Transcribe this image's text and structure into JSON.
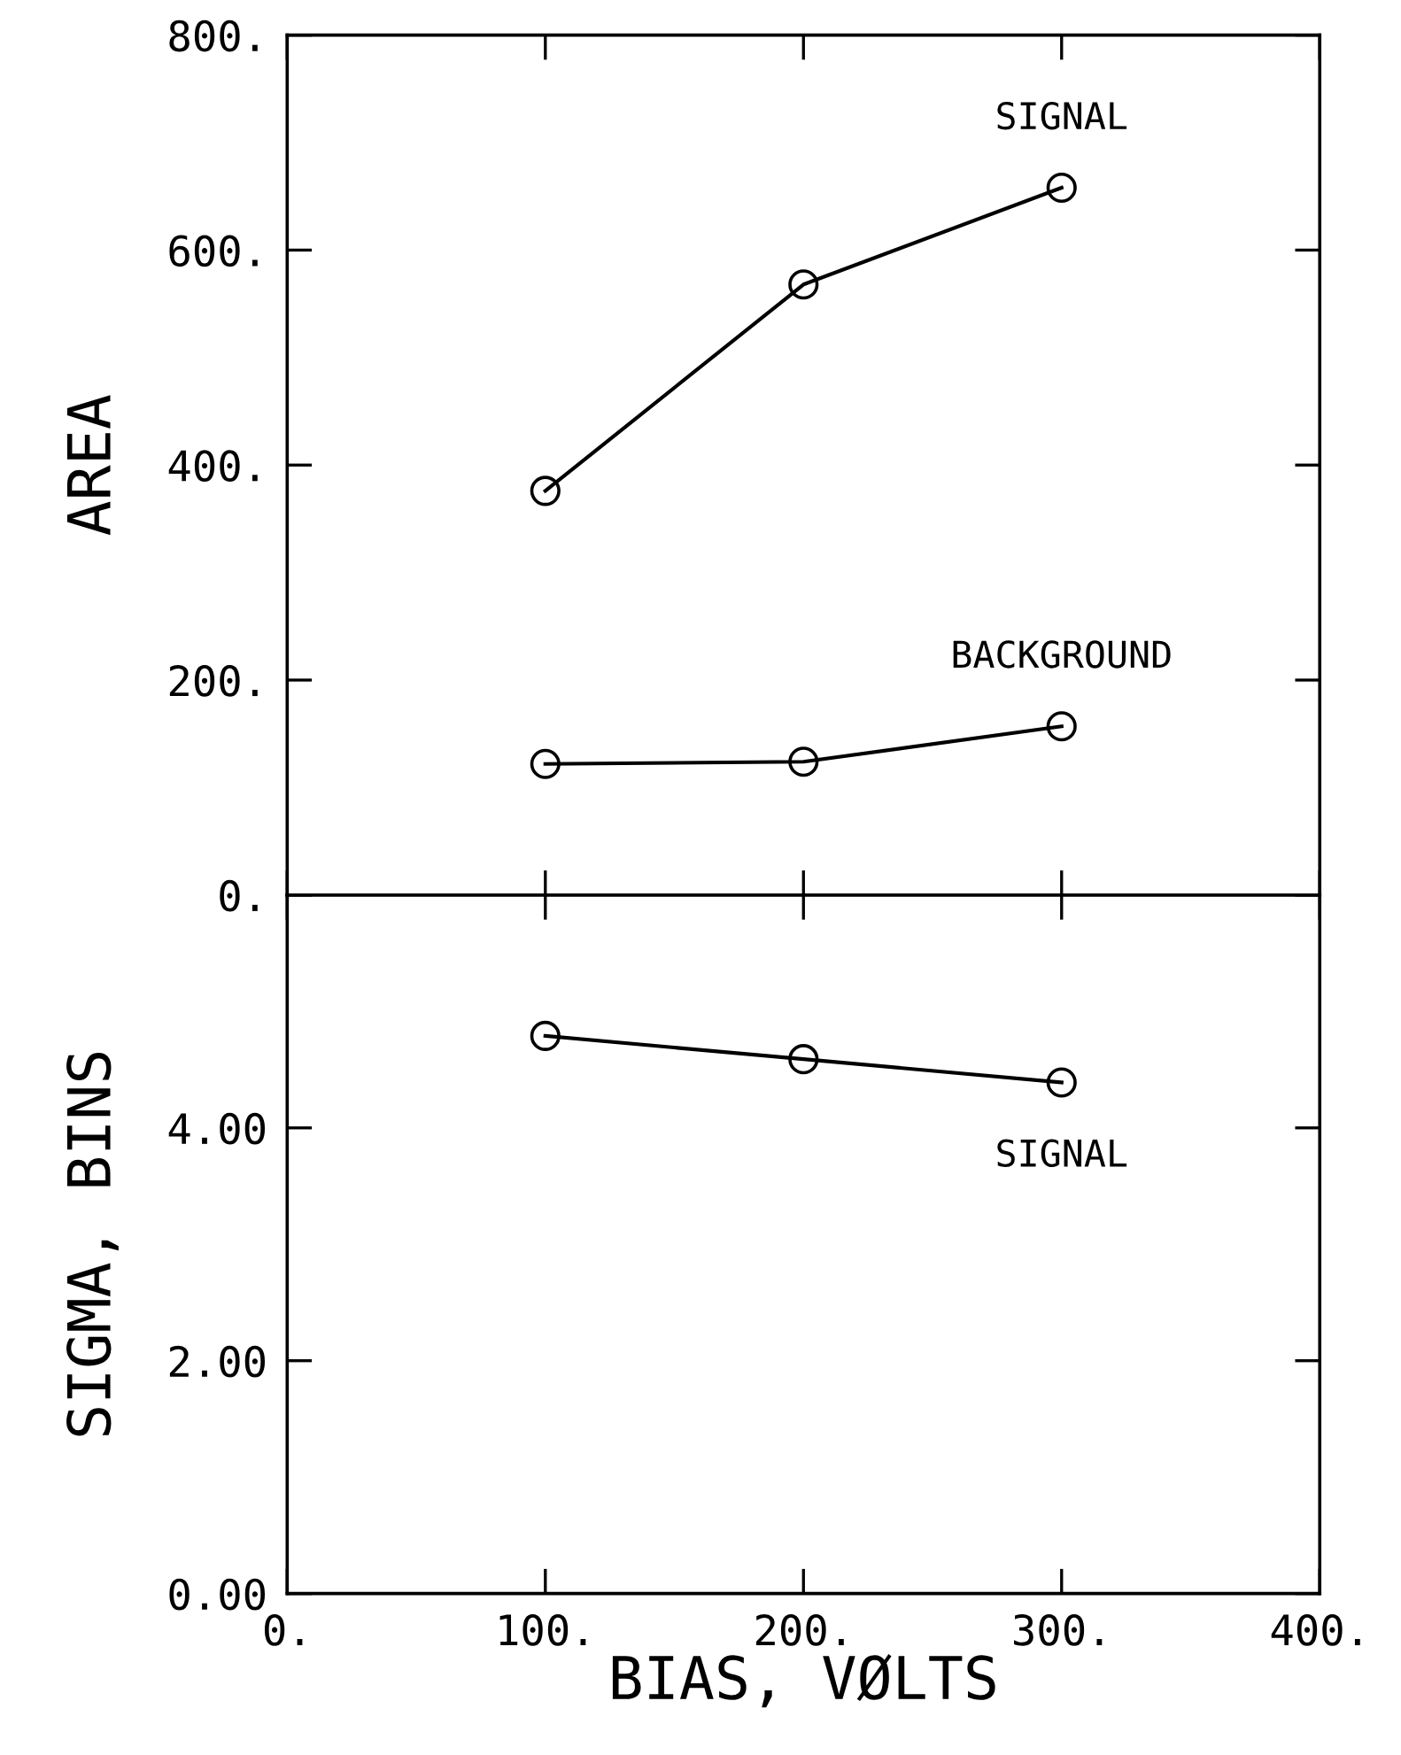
{
  "chart_data": [
    {
      "type": "line",
      "ylabel": "AREA",
      "x": [
        100,
        200,
        300
      ],
      "xlim": [
        0,
        400
      ],
      "xticks": [
        0,
        100,
        200,
        300,
        400
      ],
      "ylim": [
        0,
        800
      ],
      "yticks": [
        {
          "value": 0,
          "label": "0."
        },
        {
          "value": 200,
          "label": "200."
        },
        {
          "value": 400,
          "label": "400."
        },
        {
          "value": 600,
          "label": "600."
        },
        {
          "value": 800,
          "label": "800."
        }
      ],
      "tick_labels": "y",
      "marker": "circle",
      "line_style": "solid",
      "grid": false,
      "series": [
        {
          "name": "SIGNAL",
          "color": "#000000",
          "values": [
            376,
            568,
            658
          ]
        },
        {
          "name": "BACKGROUND",
          "color": "#000000",
          "values": [
            122,
            124,
            157
          ]
        }
      ]
    },
    {
      "type": "line",
      "xlabel": "BIAS, VØLTS",
      "ylabel": "SIGMA, BINS",
      "x": [
        100,
        200,
        300
      ],
      "xlim": [
        0,
        400
      ],
      "xticks": [
        {
          "value": 0,
          "label": "0."
        },
        {
          "value": 100,
          "label": "100."
        },
        {
          "value": 200,
          "label": "200."
        },
        {
          "value": 300,
          "label": "300."
        },
        {
          "value": 400,
          "label": "400."
        }
      ],
      "ylim": [
        0,
        6
      ],
      "yticks": [
        {
          "value": 0,
          "label": "0.00"
        },
        {
          "value": 2,
          "label": "2.00"
        },
        {
          "value": 4,
          "label": "4.00"
        },
        {
          "value": 6,
          "label": null
        }
      ],
      "marker": "circle",
      "line_style": "solid",
      "grid": false,
      "series": [
        {
          "name": "SIGNAL",
          "color": "#000000",
          "values": [
            4.79,
            4.59,
            4.39
          ]
        }
      ]
    }
  ]
}
